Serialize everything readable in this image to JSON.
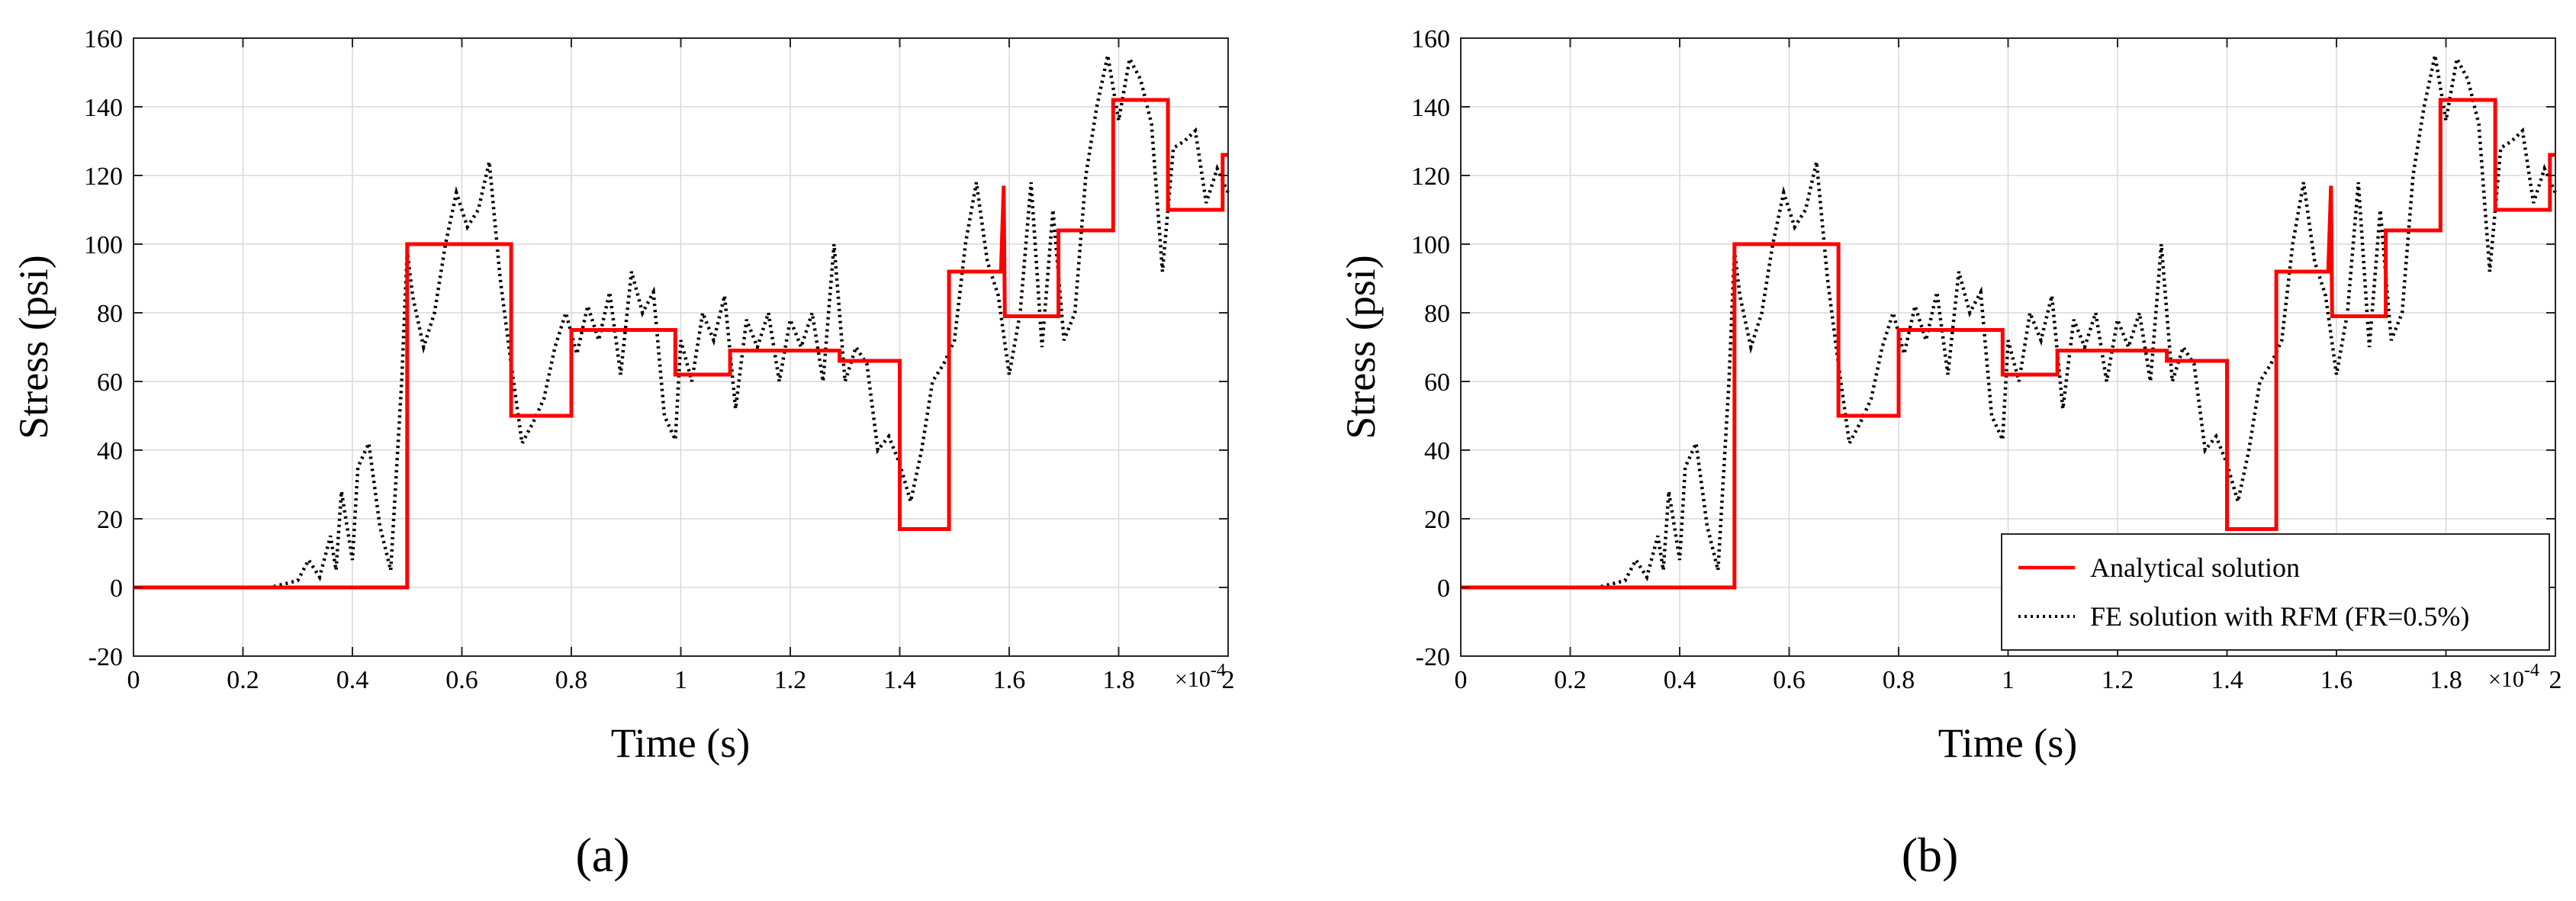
{
  "colors": {
    "analytical": "#ff0000",
    "fe": "#000000",
    "grid": "#d9d9d9"
  },
  "chart_data": [
    {
      "type": "line",
      "panel": "(a)",
      "xlabel": "Time (s)",
      "ylabel": "Stress (psi)",
      "x_multiplier_label": "×10",
      "x_multiplier_exp": "-4",
      "xlim": [
        0,
        2
      ],
      "ylim": [
        -20,
        160
      ],
      "xticks": [
        "0",
        "0.2",
        "0.4",
        "0.6",
        "0.8",
        "1",
        "1.2",
        "1.4",
        "1.6",
        "1.8",
        "2"
      ],
      "yticks": [
        "-20",
        "0",
        "20",
        "40",
        "60",
        "80",
        "100",
        "120",
        "140",
        "160"
      ],
      "grid": true,
      "legend": null,
      "series": [
        {
          "key": "analytical",
          "style": "solid",
          "color": "#ff0000",
          "x": [
            0,
            0.5,
            0.5,
            0.69,
            0.69,
            0.8,
            0.8,
            0.99,
            0.99,
            1.09,
            1.09,
            1.29,
            1.29,
            1.4,
            1.4,
            1.49,
            1.49,
            1.585,
            1.59,
            1.592,
            1.6,
            1.69,
            1.69,
            1.79,
            1.79,
            1.89,
            1.89,
            1.99,
            1.99,
            2.0
          ],
          "y": [
            0,
            0,
            100,
            100,
            50,
            50,
            75,
            75,
            62,
            62,
            69,
            69,
            66,
            66,
            17,
            17,
            92,
            92,
            117,
            79,
            79,
            79,
            104,
            104,
            142,
            142,
            110,
            110,
            126,
            126
          ]
        },
        {
          "key": "fe",
          "style": "dotted",
          "color": "#000000",
          "x": [
            0,
            0.25,
            0.3,
            0.32,
            0.34,
            0.36,
            0.37,
            0.38,
            0.4,
            0.41,
            0.43,
            0.45,
            0.47,
            0.49,
            0.5,
            0.51,
            0.53,
            0.55,
            0.57,
            0.59,
            0.61,
            0.63,
            0.65,
            0.67,
            0.69,
            0.71,
            0.73,
            0.75,
            0.77,
            0.79,
            0.81,
            0.83,
            0.85,
            0.87,
            0.89,
            0.91,
            0.93,
            0.95,
            0.97,
            0.99,
            1.0,
            1.02,
            1.04,
            1.06,
            1.08,
            1.1,
            1.12,
            1.14,
            1.16,
            1.18,
            1.2,
            1.22,
            1.24,
            1.26,
            1.28,
            1.3,
            1.32,
            1.34,
            1.36,
            1.38,
            1.4,
            1.42,
            1.44,
            1.46,
            1.48,
            1.5,
            1.52,
            1.54,
            1.56,
            1.58,
            1.6,
            1.62,
            1.64,
            1.66,
            1.68,
            1.7,
            1.72,
            1.74,
            1.76,
            1.78,
            1.8,
            1.82,
            1.84,
            1.86,
            1.88,
            1.9,
            1.92,
            1.94,
            1.96,
            1.98,
            2.0
          ],
          "y": [
            0,
            0,
            2,
            8,
            3,
            15,
            5,
            28,
            8,
            35,
            42,
            18,
            5,
            60,
            98,
            85,
            70,
            80,
            100,
            115,
            105,
            110,
            124,
            90,
            65,
            42,
            48,
            55,
            70,
            80,
            68,
            82,
            72,
            86,
            62,
            92,
            80,
            86,
            50,
            43,
            72,
            60,
            80,
            72,
            85,
            52,
            78,
            70,
            80,
            60,
            78,
            70,
            80,
            60,
            100,
            60,
            70,
            65,
            40,
            44,
            36,
            25,
            40,
            60,
            65,
            72,
            100,
            118,
            95,
            85,
            62,
            80,
            118,
            70,
            110,
            72,
            80,
            120,
            140,
            155,
            136,
            154,
            148,
            135,
            92,
            128,
            130,
            133,
            112,
            122,
            115
          ]
        }
      ]
    },
    {
      "type": "line",
      "panel": "(b)",
      "xlabel": "Time (s)",
      "ylabel": "Stress (psi)",
      "x_multiplier_label": "×10",
      "x_multiplier_exp": "-4",
      "xlim": [
        0,
        2
      ],
      "ylim": [
        -20,
        160
      ],
      "xticks": [
        "0",
        "0.2",
        "0.4",
        "0.6",
        "0.8",
        "1",
        "1.2",
        "1.4",
        "1.6",
        "1.8",
        "2"
      ],
      "yticks": [
        "-20",
        "0",
        "20",
        "40",
        "60",
        "80",
        "100",
        "120",
        "140",
        "160"
      ],
      "grid": true,
      "legend": {
        "position": "bottom-right",
        "entries": [
          {
            "key": "analytical",
            "label": "Analytical solution"
          },
          {
            "key": "fe",
            "label": "FE solution with RFM (FR=0.5%)"
          }
        ]
      },
      "series": [
        {
          "key": "analytical",
          "style": "solid",
          "color": "#ff0000",
          "x": [
            0,
            0.5,
            0.5,
            0.69,
            0.69,
            0.8,
            0.8,
            0.99,
            0.99,
            1.09,
            1.09,
            1.29,
            1.29,
            1.4,
            1.4,
            1.49,
            1.49,
            1.585,
            1.59,
            1.592,
            1.6,
            1.69,
            1.69,
            1.79,
            1.79,
            1.89,
            1.89,
            1.99,
            1.99,
            2.0
          ],
          "y": [
            0,
            0,
            100,
            100,
            50,
            50,
            75,
            75,
            62,
            62,
            69,
            69,
            66,
            66,
            17,
            17,
            92,
            92,
            117,
            79,
            79,
            79,
            104,
            104,
            142,
            142,
            110,
            110,
            126,
            126
          ]
        },
        {
          "key": "fe",
          "style": "dotted",
          "color": "#000000",
          "x": [
            0,
            0.25,
            0.3,
            0.32,
            0.34,
            0.36,
            0.37,
            0.38,
            0.4,
            0.41,
            0.43,
            0.45,
            0.47,
            0.49,
            0.5,
            0.51,
            0.53,
            0.55,
            0.57,
            0.59,
            0.61,
            0.63,
            0.65,
            0.67,
            0.69,
            0.71,
            0.73,
            0.75,
            0.77,
            0.79,
            0.81,
            0.83,
            0.85,
            0.87,
            0.89,
            0.91,
            0.93,
            0.95,
            0.97,
            0.99,
            1.0,
            1.02,
            1.04,
            1.06,
            1.08,
            1.1,
            1.12,
            1.14,
            1.16,
            1.18,
            1.2,
            1.22,
            1.24,
            1.26,
            1.28,
            1.3,
            1.32,
            1.34,
            1.36,
            1.38,
            1.4,
            1.42,
            1.44,
            1.46,
            1.48,
            1.5,
            1.52,
            1.54,
            1.56,
            1.58,
            1.6,
            1.62,
            1.64,
            1.66,
            1.68,
            1.7,
            1.72,
            1.74,
            1.76,
            1.78,
            1.8,
            1.82,
            1.84,
            1.86,
            1.88,
            1.9,
            1.92,
            1.94,
            1.96,
            1.98,
            2.0
          ],
          "y": [
            0,
            0,
            2,
            8,
            3,
            15,
            5,
            28,
            8,
            35,
            42,
            18,
            5,
            60,
            98,
            85,
            70,
            80,
            100,
            115,
            105,
            110,
            124,
            90,
            65,
            42,
            48,
            55,
            70,
            80,
            68,
            82,
            72,
            86,
            62,
            92,
            80,
            86,
            50,
            43,
            72,
            60,
            80,
            72,
            85,
            52,
            78,
            70,
            80,
            60,
            78,
            70,
            80,
            60,
            100,
            60,
            70,
            65,
            40,
            44,
            36,
            25,
            40,
            60,
            65,
            72,
            100,
            118,
            95,
            85,
            62,
            80,
            118,
            70,
            110,
            72,
            80,
            120,
            140,
            155,
            136,
            154,
            148,
            135,
            92,
            128,
            130,
            133,
            112,
            122,
            115
          ]
        }
      ]
    }
  ]
}
